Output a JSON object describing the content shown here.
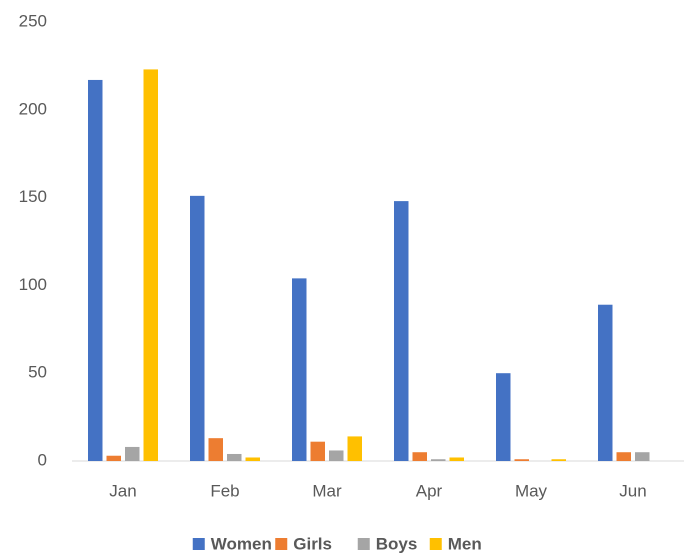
{
  "chart_data": {
    "type": "bar",
    "categories": [
      "Jan",
      "Feb",
      "Mar",
      "Apr",
      "May",
      "Jun"
    ],
    "series": [
      {
        "name": "Women",
        "color": "#4472c4",
        "values": [
          217,
          151,
          104,
          148,
          50,
          89
        ]
      },
      {
        "name": "Girls",
        "color": "#ed7d31",
        "values": [
          3,
          13,
          11,
          5,
          1,
          5
        ]
      },
      {
        "name": "Boys",
        "color": "#a5a5a5",
        "values": [
          8,
          4,
          6,
          1,
          0,
          5
        ]
      },
      {
        "name": "Men",
        "color": "#ffc000",
        "values": [
          223,
          2,
          14,
          2,
          1,
          0
        ]
      }
    ],
    "ylim": [
      0,
      250
    ],
    "yticks": [
      0,
      50,
      100,
      150,
      200,
      250
    ],
    "grid": false,
    "legend": "bottom"
  }
}
